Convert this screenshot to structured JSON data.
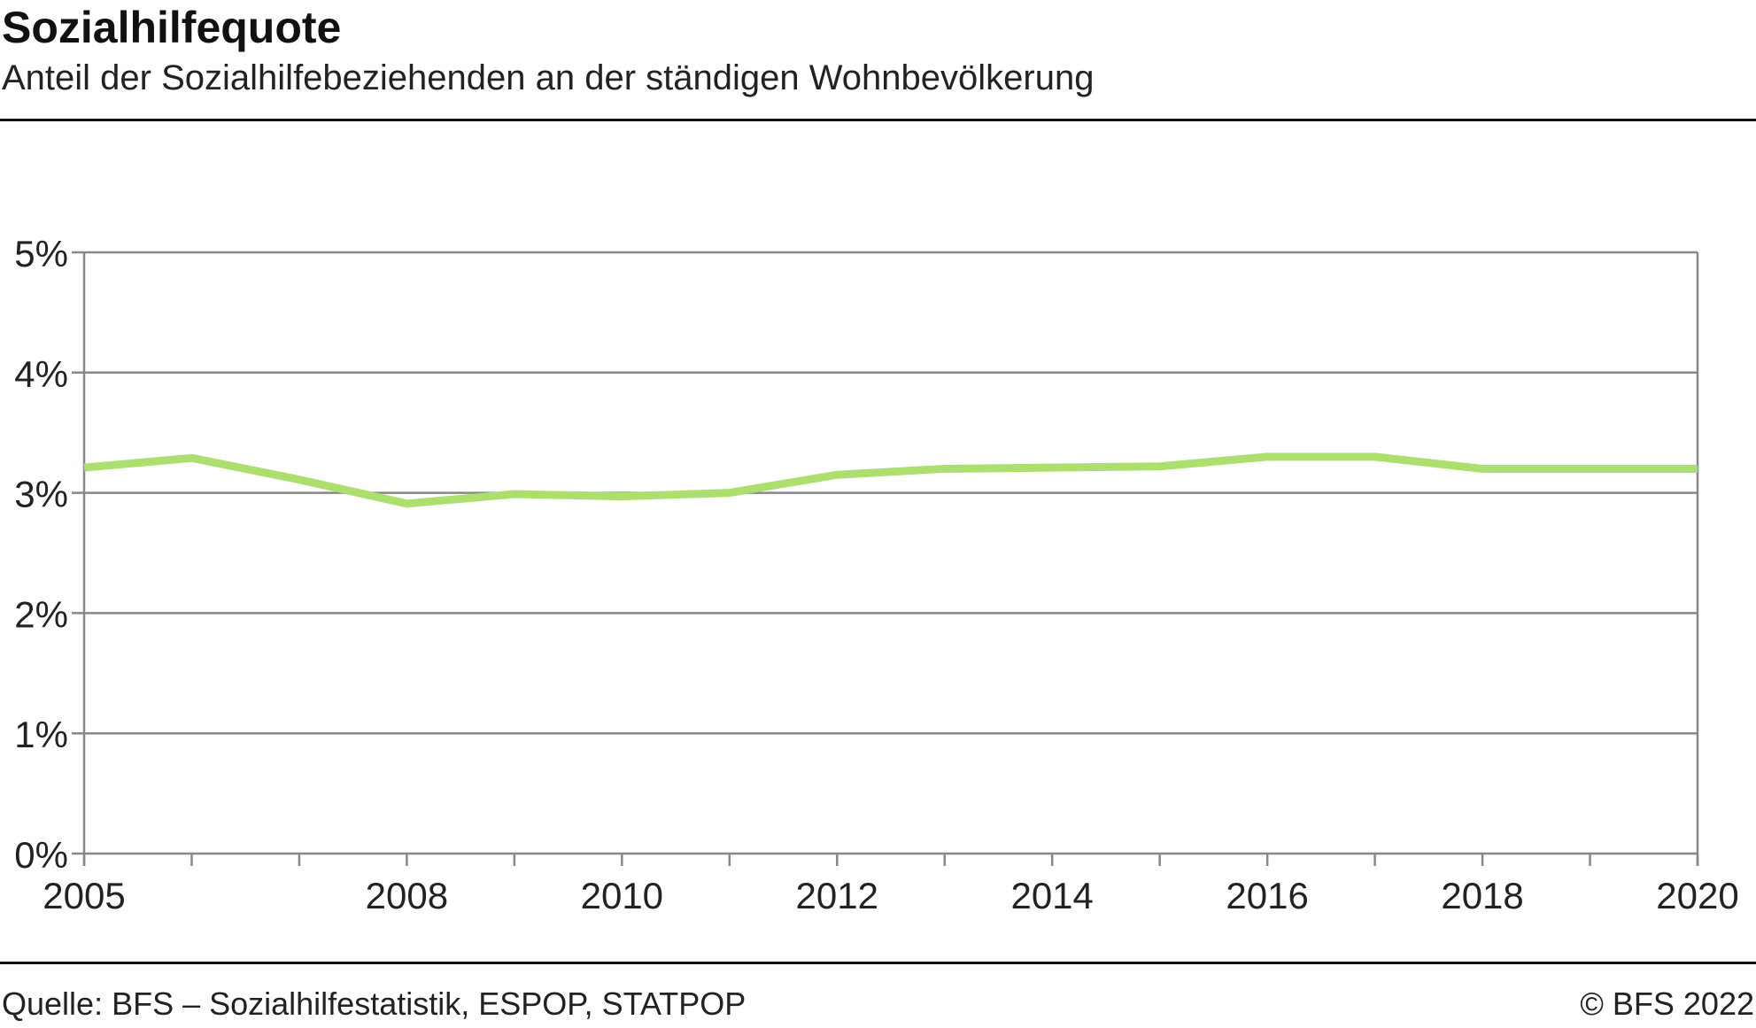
{
  "header": {
    "title": "Sozialhilfequote",
    "subtitle": "Anteil der Sozialhilfebeziehenden an der ständigen Wohnbevölkerung"
  },
  "footer": {
    "source": "Quelle: BFS – Sozialhilfestatistik, ESPOP, STATPOP",
    "copyright": "© BFS 2022"
  },
  "chart_data": {
    "type": "line",
    "title": "Sozialhilfequote",
    "subtitle": "Anteil der Sozialhilfebeziehenden an der ständigen Wohnbevölkerung",
    "x": [
      2005,
      2006,
      2007,
      2008,
      2009,
      2010,
      2011,
      2012,
      2013,
      2014,
      2015,
      2016,
      2017,
      2018,
      2019,
      2020
    ],
    "series": [
      {
        "values": [
          3.21,
          3.29,
          3.11,
          2.91,
          2.99,
          2.97,
          3.0,
          3.15,
          3.2,
          3.21,
          3.22,
          3.3,
          3.3,
          3.2,
          3.2,
          3.2
        ],
        "color": "#addf6e"
      }
    ],
    "xlim": [
      2005,
      2020
    ],
    "ylim": [
      0,
      5
    ],
    "yticks": [
      "0%",
      "1%",
      "2%",
      "3%",
      "4%",
      "5%"
    ],
    "xtick_labels": [
      "2005",
      "2008",
      "2010",
      "2012",
      "2014",
      "2016",
      "2018",
      "2020"
    ],
    "grid": true,
    "legend": "none"
  }
}
